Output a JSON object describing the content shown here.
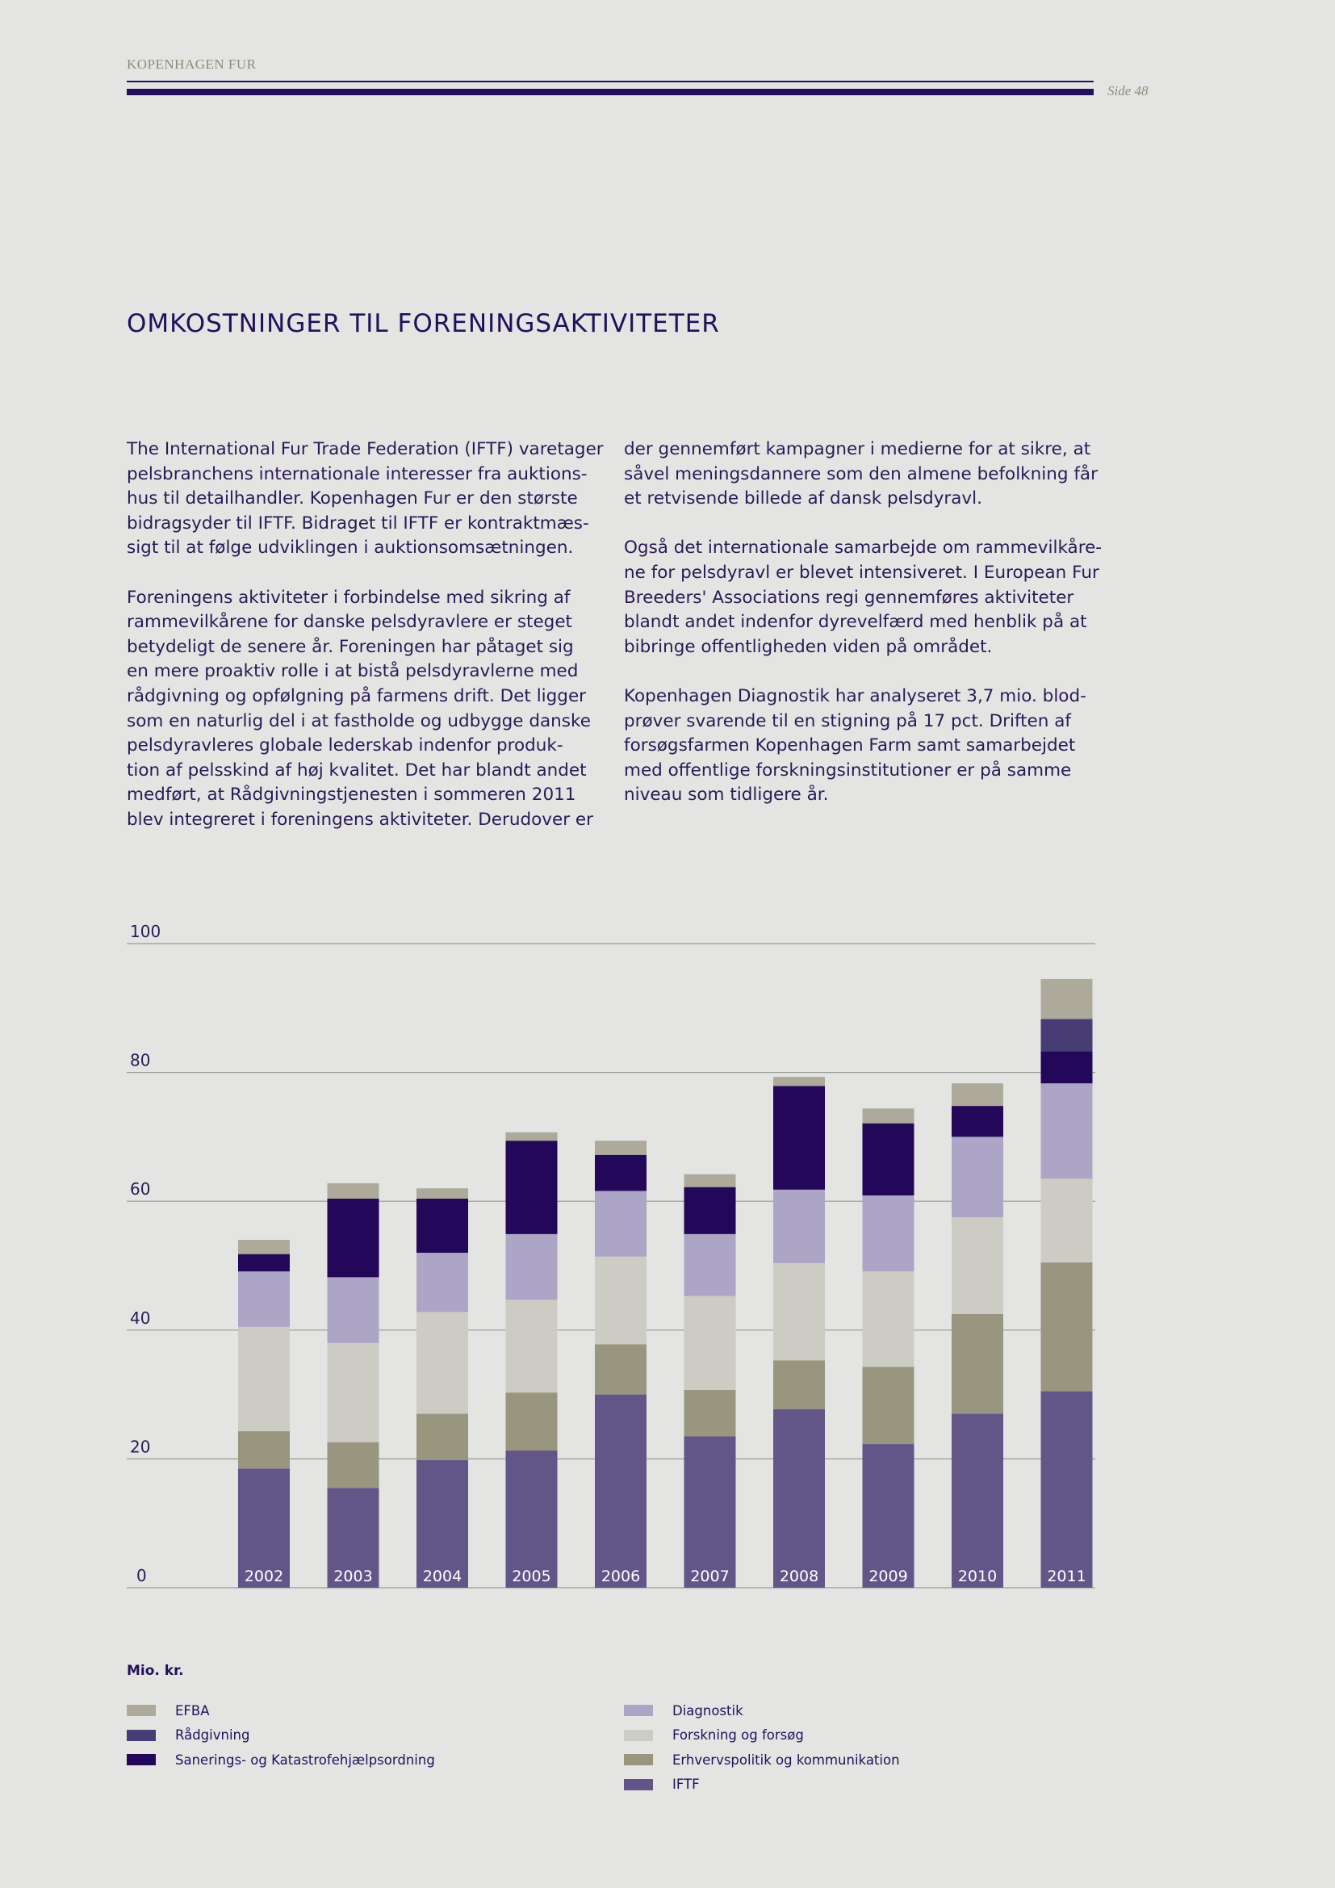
{
  "header": {
    "brand": "KOPENHAGEN FUR",
    "page": "Side 48"
  },
  "section": {
    "title": "OMKOSTNINGER TIL FORENINGSAKTIVITETER"
  },
  "body": {
    "left": [
      [
        "The International Fur Trade Federation (IFTF) varetager",
        "pelsbranchens internationale interesser fra auktions-",
        "hus til detailhandler. Kopenhagen Fur er den største",
        "bidragsyder til IFTF. Bidraget til IFTF er kontraktmæs-",
        "sigt til at følge udviklingen i auktionsomsætningen."
      ],
      [
        "Foreningens aktiviteter i forbindelse med sikring af",
        "rammevilkårene for danske pelsdyravlere er steget",
        "betydeligt de senere år.  Foreningen har påtaget sig",
        "en mere proaktiv rolle i at bistå pelsdyravlerne med",
        "rådgivning og opfølgning på farmens drift. Det ligger",
        "som en naturlig del i at fastholde og udbygge danske",
        "pelsdyravleres globale lederskab indenfor produk-",
        "tion af pelsskind af høj kvalitet. Det har blandt andet",
        "medført, at Rådgivningstjenesten i sommeren 2011",
        "blev integreret i foreningens aktiviteter. Derudover er"
      ]
    ],
    "right": [
      [
        "der gennemført kampagner i medierne for at sikre, at",
        "såvel meningsdannere som den almene befolkning får",
        "et retvisende billede af dansk pelsdyravl."
      ],
      [
        "Også det internationale samarbejde om rammevilkåre-",
        "ne for pelsdyravl er blevet intensiveret. I European Fur",
        "Breeders' Associations regi gennemføres aktiviteter",
        "blandt andet indenfor dyrevelfærd med henblik på at",
        "bibringe offentligheden viden på området."
      ],
      [
        "Kopenhagen Diagnostik har analyseret 3,7 mio. blod-",
        "prøver svarende til en stigning på 17 pct. Driften af",
        "forsøgsfarmen Kopenhagen Farm samt samarbejdet",
        "med offentlige forskningsinstitutioner er på samme",
        "niveau som tidligere år."
      ]
    ]
  },
  "chart_data": {
    "type": "bar",
    "stacked": true,
    "categories": [
      "2002",
      "2003",
      "2004",
      "2005",
      "2006",
      "2007",
      "2008",
      "2009",
      "2010",
      "2011"
    ],
    "yticks": [
      0,
      20,
      40,
      60,
      80,
      100
    ],
    "ylim": [
      0,
      100
    ],
    "ylabel": "Mio. kr.",
    "grid": true,
    "legend_position": "bottom",
    "series": [
      {
        "name": "IFTF",
        "color": "#625689",
        "values": [
          18.5,
          15.5,
          19.8,
          21.3,
          30.0,
          23.5,
          27.7,
          22.3,
          27.0,
          30.5
        ]
      },
      {
        "name": "Erhvervspolitik og kommunikation",
        "color": "#98967f",
        "values": [
          5.8,
          7.1,
          7.2,
          9.0,
          7.8,
          7.2,
          7.6,
          12.0,
          15.5,
          20.0
        ]
      },
      {
        "name": "Forskning og forsøg",
        "color": "#cdccc4",
        "values": [
          16.2,
          15.4,
          15.8,
          14.4,
          13.6,
          14.6,
          15.1,
          14.8,
          15.0,
          13.0
        ]
      },
      {
        "name": "Diagnostik",
        "color": "#aca5c6",
        "values": [
          8.6,
          10.2,
          9.2,
          10.2,
          10.2,
          9.6,
          11.4,
          11.8,
          12.5,
          14.8
        ]
      },
      {
        "name": "Sanerings- og Katastrofehjælpsordning",
        "color": "#23085a",
        "values": [
          2.7,
          12.2,
          8.4,
          14.5,
          5.6,
          7.3,
          16.1,
          11.2,
          4.8,
          5.0
        ]
      },
      {
        "name": "Rådgivning",
        "color": "#483c74",
        "values": [
          0,
          0,
          0,
          0,
          0,
          0,
          0,
          0,
          0,
          5.0
        ]
      },
      {
        "name": "EFBA",
        "color": "#adaa9b",
        "values": [
          2.2,
          2.4,
          1.6,
          1.3,
          2.2,
          2.0,
          1.4,
          2.3,
          3.5,
          6.2
        ]
      }
    ]
  },
  "legend": {
    "left": [
      {
        "label": "EFBA",
        "color": "#adaa9b"
      },
      {
        "label": "Rådgivning",
        "color": "#483c74"
      },
      {
        "label": "Sanerings- og Katastrofehjælpsordning",
        "color": "#23085a"
      }
    ],
    "right": [
      {
        "label": "Diagnostik",
        "color": "#aca5c6"
      },
      {
        "label": "Forskning og forsøg",
        "color": "#cdccc4"
      },
      {
        "label": "Erhvervspolitik og kommunikation",
        "color": "#98967f"
      },
      {
        "label": "IFTF",
        "color": "#625689"
      }
    ]
  }
}
